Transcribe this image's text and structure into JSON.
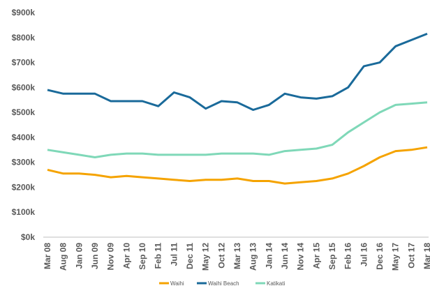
{
  "chart_data": {
    "type": "line",
    "categories": [
      "Mar 08",
      "Aug 08",
      "Jan 09",
      "Jun 09",
      "Nov 09",
      "Apr 10",
      "Sep 10",
      "Feb 11",
      "Jul 11",
      "Dec 11",
      "May 12",
      "Oct 12",
      "Mar 13",
      "Aug 13",
      "Jan 14",
      "Jun 14",
      "Nov 14",
      "Apr 15",
      "Sep 15",
      "Feb 16",
      "Jul 16",
      "Dec 16",
      "May 17",
      "Oct 17",
      "Mar 18"
    ],
    "series": [
      {
        "name": "Waihi",
        "color": "#f5a300",
        "values": [
          270000,
          255000,
          255000,
          250000,
          240000,
          245000,
          240000,
          235000,
          230000,
          225000,
          230000,
          230000,
          235000,
          225000,
          225000,
          215000,
          220000,
          225000,
          235000,
          255000,
          285000,
          320000,
          345000,
          350000,
          360000
        ]
      },
      {
        "name": "Waihi Beach",
        "color": "#1a6a9a",
        "values": [
          590000,
          575000,
          575000,
          575000,
          545000,
          545000,
          545000,
          525000,
          580000,
          560000,
          515000,
          545000,
          540000,
          510000,
          530000,
          575000,
          560000,
          555000,
          565000,
          600000,
          685000,
          700000,
          765000,
          790000,
          815000
        ]
      },
      {
        "name": "Katikati",
        "color": "#7fd8b8",
        "values": [
          350000,
          340000,
          330000,
          320000,
          330000,
          335000,
          335000,
          330000,
          330000,
          330000,
          330000,
          335000,
          335000,
          335000,
          330000,
          345000,
          350000,
          355000,
          370000,
          420000,
          460000,
          500000,
          530000,
          535000,
          540000
        ]
      }
    ],
    "ylim": [
      0,
      900000
    ],
    "yticks": [
      {
        "value": 0,
        "label": "$0k"
      },
      {
        "value": 100000,
        "label": "$100k"
      },
      {
        "value": 200000,
        "label": "$200k"
      },
      {
        "value": 300000,
        "label": "$300k"
      },
      {
        "value": 400000,
        "label": "$400k"
      },
      {
        "value": 500000,
        "label": "$500k"
      },
      {
        "value": 600000,
        "label": "$600k"
      },
      {
        "value": 700000,
        "label": "$700k"
      },
      {
        "value": 800000,
        "label": "$800k"
      },
      {
        "value": 900000,
        "label": "$900k"
      }
    ],
    "grid": false
  }
}
